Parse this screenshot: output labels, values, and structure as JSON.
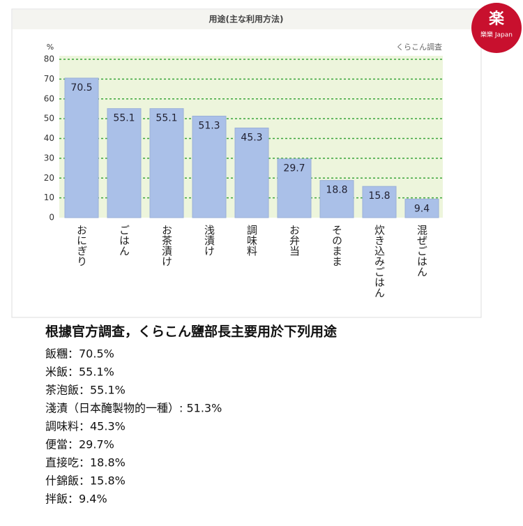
{
  "chart_data": {
    "type": "bar",
    "title": "用途(主な利用方法)",
    "y_label": "%",
    "source": "くらこん調査",
    "categories": [
      "おにぎり",
      "ごはん",
      "お茶漬け",
      "浅漬け",
      "調味料",
      "お弁当",
      "そのまま",
      "炊き込みごはん",
      "混ぜごはん"
    ],
    "values": [
      70.5,
      55.1,
      55.1,
      51.3,
      45.3,
      29.7,
      18.8,
      15.8,
      9.4
    ],
    "color": "#aac0e8",
    "ylim": [
      0,
      80
    ],
    "yticks": [
      0,
      10,
      20,
      30,
      40,
      50,
      60,
      70,
      80
    ],
    "grid": true
  },
  "caption": {
    "heading": "根據官方調查，くらこん鹽部長主要用於下列用途",
    "lines": [
      "飯糰：70.5%",
      "米飯：55.1%",
      "茶泡飯：55.1%",
      "淺漬（日本醃製物的一種）: 51.3%",
      "調味料：45.3%",
      "便當：29.7%",
      "直接吃：18.8%",
      "什錦飯：15.8%",
      "拌飯：9.4%"
    ]
  },
  "logo": {
    "text": "樂樂 Japan"
  }
}
